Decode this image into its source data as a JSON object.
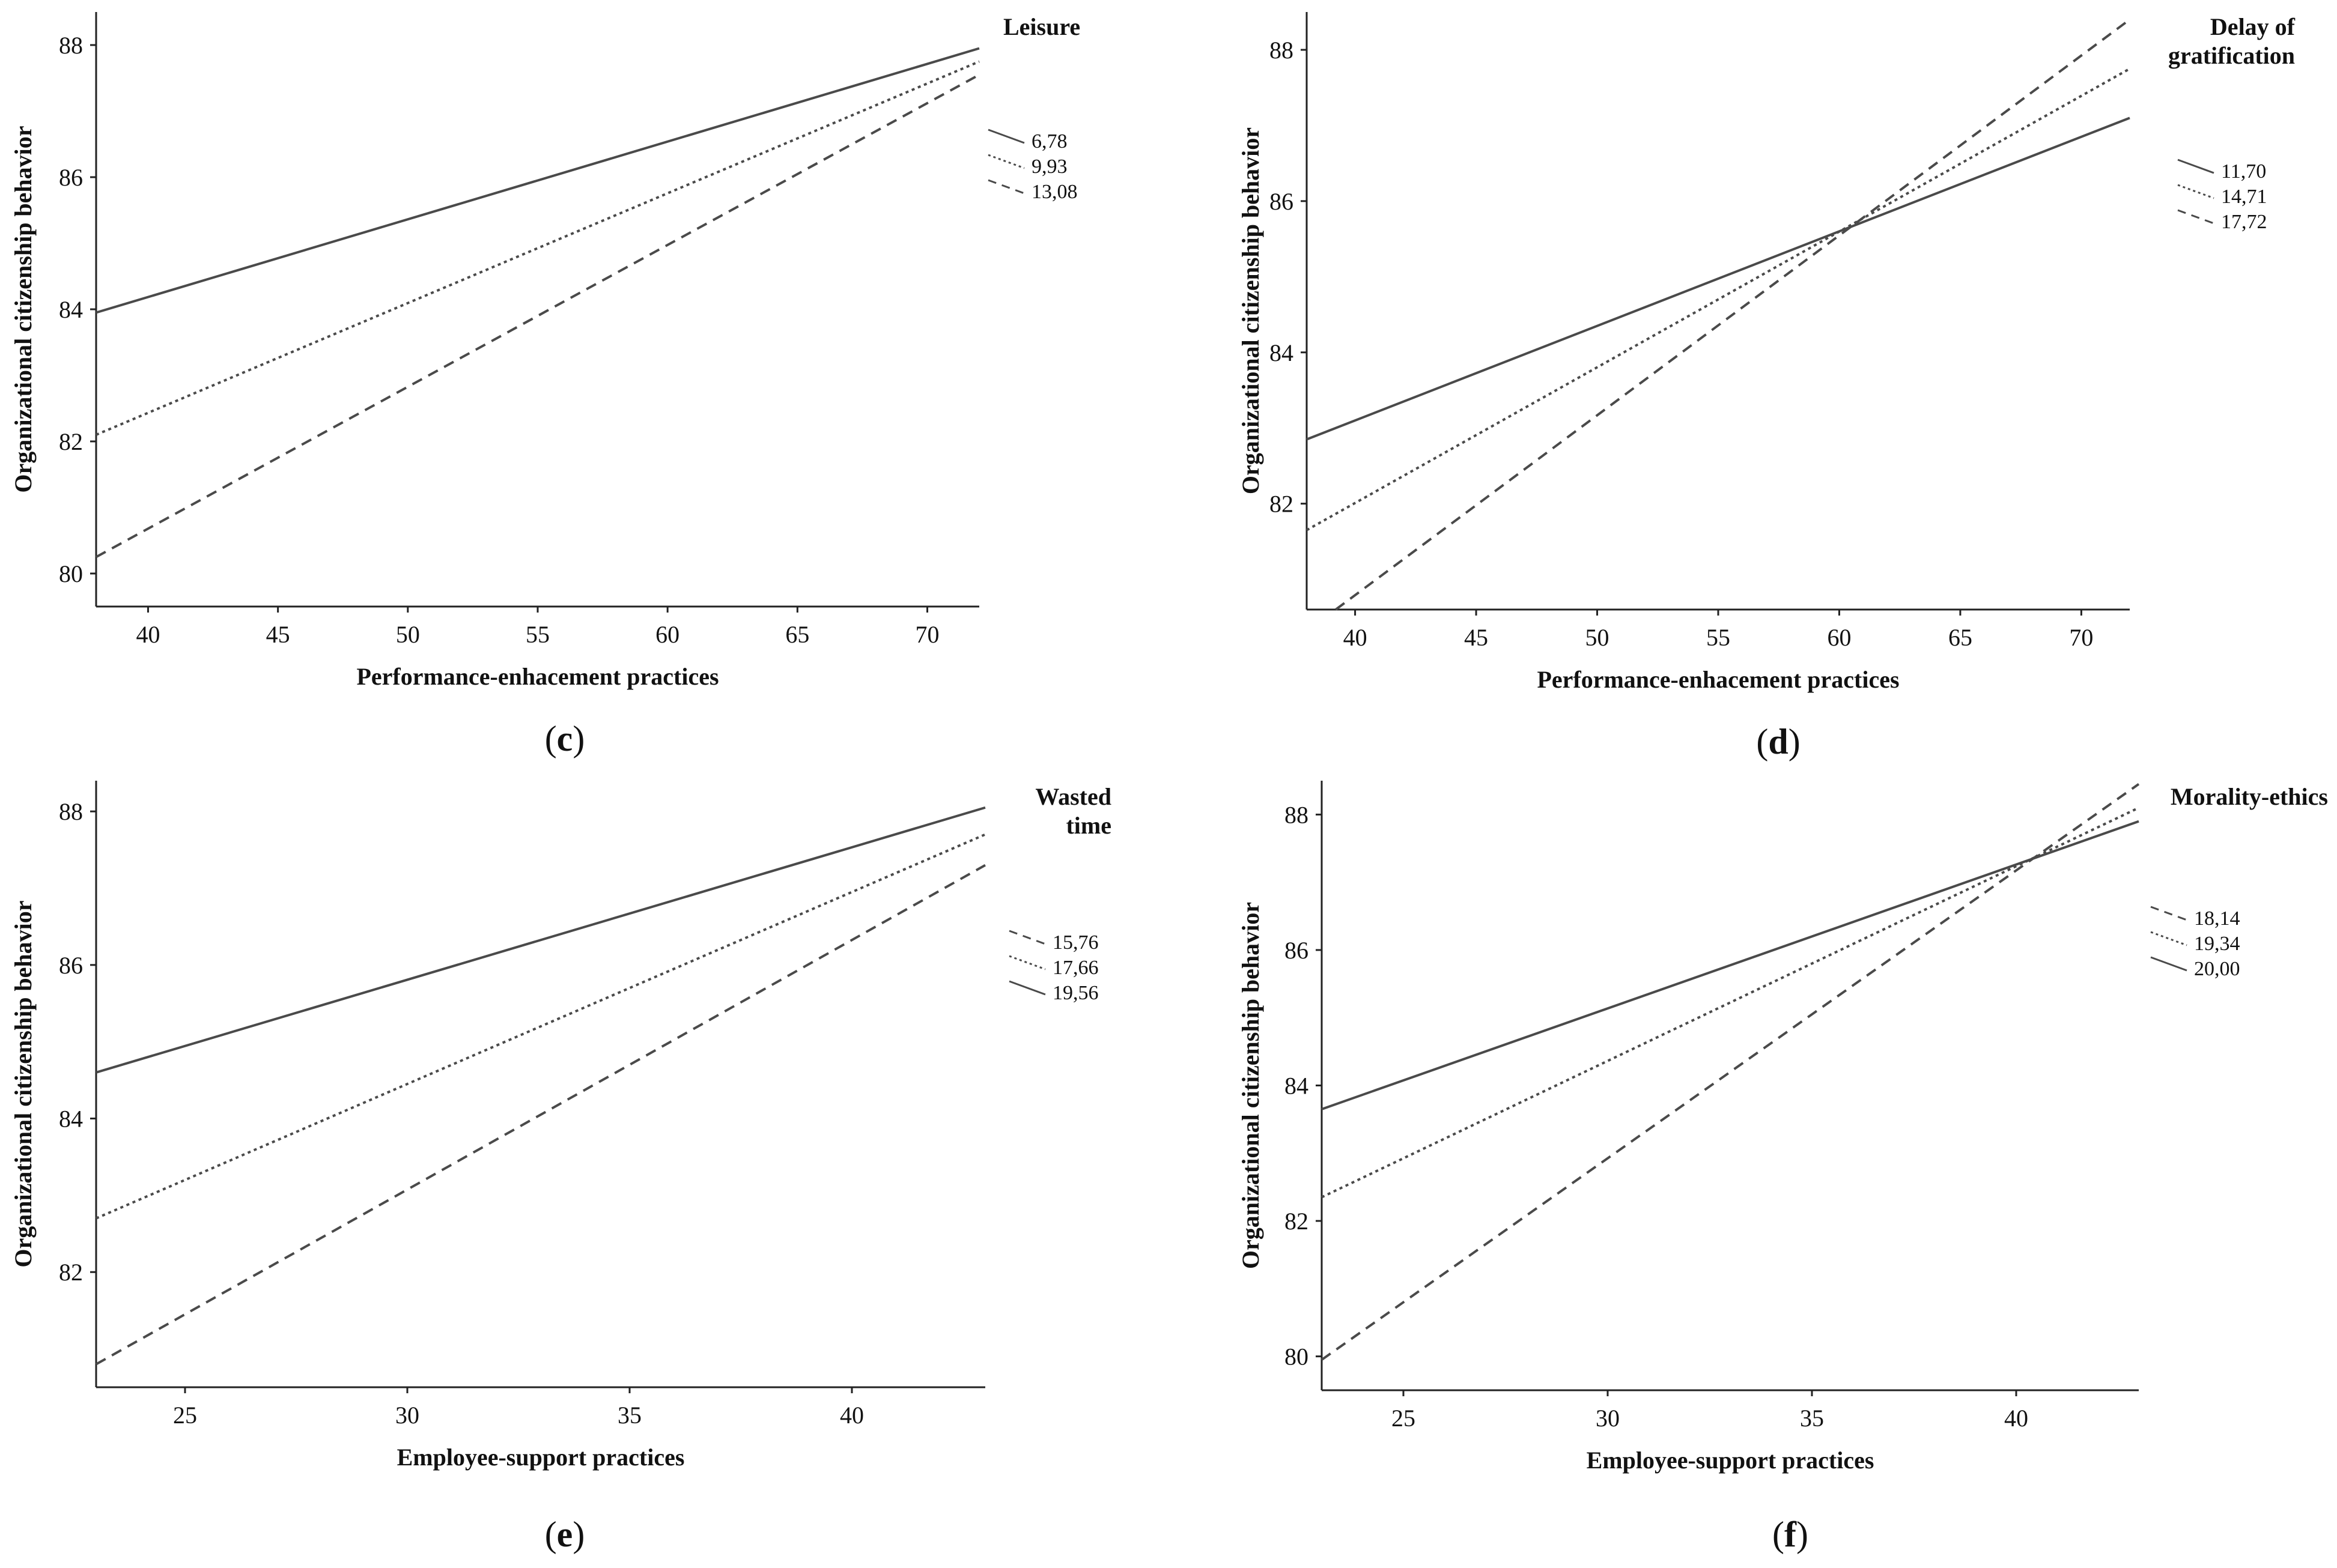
{
  "chart_data": [
    {
      "type": "line",
      "panel_label": "c",
      "xlabel": "Performance-enhacement practices",
      "ylabel": "Organizational citizenship behavior",
      "moderator": [
        "Leisure"
      ],
      "xlim": [
        38,
        72
      ],
      "ylim": [
        79.5,
        88.5
      ],
      "xticks": [
        40,
        45,
        50,
        55,
        60,
        65,
        70
      ],
      "yticks": [
        80,
        82,
        84,
        86,
        88
      ],
      "series": [
        {
          "name": "6,78",
          "style": "solid",
          "x": [
            38,
            72
          ],
          "y": [
            83.95,
            87.95
          ]
        },
        {
          "name": "9,93",
          "style": "dotted",
          "x": [
            38,
            72
          ],
          "y": [
            82.1,
            87.75
          ]
        },
        {
          "name": "13,08",
          "style": "dashed",
          "x": [
            38,
            72
          ],
          "y": [
            80.25,
            87.55
          ]
        }
      ]
    },
    {
      "type": "line",
      "panel_label": "d",
      "xlabel": "Performance-enhacement practices",
      "ylabel": "Organizational citizenship behavior",
      "moderator": [
        "Delay of",
        "gratification"
      ],
      "xlim": [
        38,
        72
      ],
      "ylim": [
        80.6,
        88.5
      ],
      "xticks": [
        40,
        45,
        50,
        55,
        60,
        65,
        70
      ],
      "yticks": [
        82,
        84,
        86,
        88
      ],
      "series": [
        {
          "name": "11,70",
          "style": "solid",
          "x": [
            38,
            72
          ],
          "y": [
            82.85,
            87.1
          ]
        },
        {
          "name": "14,71",
          "style": "dotted",
          "x": [
            38,
            72
          ],
          "y": [
            81.65,
            87.75
          ]
        },
        {
          "name": "17,72",
          "style": "dashed",
          "x": [
            39.2,
            72
          ],
          "y": [
            80.6,
            88.4
          ]
        }
      ]
    },
    {
      "type": "line",
      "panel_label": "e",
      "xlabel": "Employee-support practices",
      "ylabel": "Organizational citizenship behavior",
      "moderator": [
        "Wasted",
        "time"
      ],
      "xlim": [
        23,
        43
      ],
      "ylim": [
        80.5,
        88.4
      ],
      "xticks": [
        25,
        30,
        35,
        40
      ],
      "yticks": [
        82,
        84,
        86,
        88
      ],
      "series": [
        {
          "name": "15,76",
          "style": "dashed",
          "x": [
            23,
            43
          ],
          "y": [
            80.8,
            87.3
          ]
        },
        {
          "name": "17,66",
          "style": "dotted",
          "x": [
            23,
            43
          ],
          "y": [
            82.7,
            87.7
          ]
        },
        {
          "name": "19,56",
          "style": "solid",
          "x": [
            23,
            43
          ],
          "y": [
            84.6,
            88.05
          ]
        }
      ]
    },
    {
      "type": "line",
      "panel_label": "f",
      "xlabel": "Employee-support practices",
      "ylabel": "Organizational citizenship behavior",
      "moderator": [
        "Morality-ethics"
      ],
      "xlim": [
        23,
        43
      ],
      "ylim": [
        79.5,
        88.5
      ],
      "xticks": [
        25,
        30,
        35,
        40
      ],
      "yticks": [
        80,
        82,
        84,
        86,
        88
      ],
      "series": [
        {
          "name": "18,14",
          "style": "dashed",
          "x": [
            23,
            43
          ],
          "y": [
            79.95,
            88.45
          ]
        },
        {
          "name": "19,34",
          "style": "dotted",
          "x": [
            23,
            43
          ],
          "y": [
            82.35,
            88.1
          ]
        },
        {
          "name": "20,00",
          "style": "solid",
          "x": [
            23,
            43
          ],
          "y": [
            83.65,
            87.9
          ]
        }
      ]
    }
  ]
}
